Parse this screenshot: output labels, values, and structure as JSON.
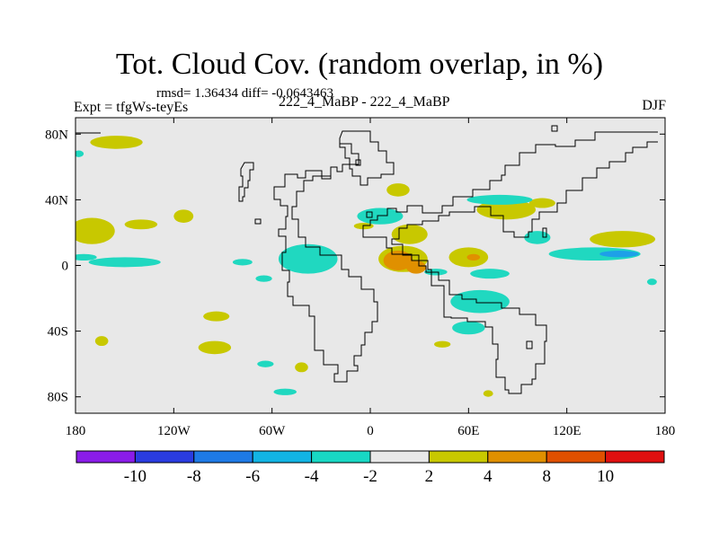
{
  "title": "Tot. Cloud Cov. (random overlap, in %)",
  "stats": "rmsd= 1.36434 diff= -0.0643463",
  "left_label": "Expt = tfgWs-teyEs",
  "center_label": "222_4_MaBP - 222_4_MaBP",
  "right_label": "DJF",
  "colors": {
    "background_field": "#e8e8e8",
    "yellow_green": "#c8c800",
    "orange": "#e09000",
    "cyan": "#20d8c0",
    "blue": "#1ea0e8",
    "coastline": "#000000"
  },
  "map": {
    "lon_range": [
      -180,
      180
    ],
    "lat_range": [
      -90,
      90
    ],
    "x_ticks": [
      {
        "lon": -180,
        "label": "180"
      },
      {
        "lon": -120,
        "label": "120W"
      },
      {
        "lon": -60,
        "label": "60W"
      },
      {
        "lon": 0,
        "label": "0"
      },
      {
        "lon": 60,
        "label": "60E"
      },
      {
        "lon": 120,
        "label": "120E"
      },
      {
        "lon": 180,
        "label": "180"
      }
    ],
    "y_ticks": [
      {
        "lat": 80,
        "label": "80N"
      },
      {
        "lat": 40,
        "label": "40N"
      },
      {
        "lat": 0,
        "label": "0"
      },
      {
        "lat": -40,
        "label": "40S"
      },
      {
        "lat": -80,
        "label": "80S"
      }
    ],
    "anomaly_regions": [
      {
        "level": "positive_2_4",
        "lon": -155,
        "lat": 75,
        "rlon": 16,
        "rlat": 4
      },
      {
        "level": "positive_2_4",
        "lon": -170,
        "lat": 21,
        "rlon": 14,
        "rlat": 8
      },
      {
        "level": "positive_2_4",
        "lon": -140,
        "lat": 25,
        "rlon": 10,
        "rlat": 3
      },
      {
        "level": "positive_2_4",
        "lon": -114,
        "lat": 30,
        "rlon": 6,
        "rlat": 4
      },
      {
        "level": "positive_2_4",
        "lon": -4,
        "lat": 24,
        "rlon": 6,
        "rlat": 2
      },
      {
        "level": "positive_2_4",
        "lon": 17,
        "lat": 46,
        "rlon": 7,
        "rlat": 4
      },
      {
        "level": "positive_2_4",
        "lon": 24,
        "lat": 19,
        "rlon": 11,
        "rlat": 6
      },
      {
        "level": "positive_2_4",
        "lon": 20,
        "lat": 4,
        "rlon": 15,
        "rlat": 8
      },
      {
        "level": "positive_2_4",
        "lon": 60,
        "lat": 5,
        "rlon": 12,
        "rlat": 6
      },
      {
        "level": "positive_2_4",
        "lon": 83,
        "lat": 34,
        "rlon": 18,
        "rlat": 6
      },
      {
        "level": "positive_2_4",
        "lon": 105,
        "lat": 38,
        "rlon": 8,
        "rlat": 3
      },
      {
        "level": "positive_2_4",
        "lon": 154,
        "lat": 16,
        "rlon": 20,
        "rlat": 5
      },
      {
        "level": "positive_2_4",
        "lon": -94,
        "lat": -31,
        "rlon": 8,
        "rlat": 3
      },
      {
        "level": "positive_2_4",
        "lon": -164,
        "lat": -46,
        "rlon": 4,
        "rlat": 3
      },
      {
        "level": "positive_2_4",
        "lon": -95,
        "lat": -50,
        "rlon": 10,
        "rlat": 4
      },
      {
        "level": "positive_2_4",
        "lon": -42,
        "lat": -62,
        "rlon": 4,
        "rlat": 3
      },
      {
        "level": "positive_2_4",
        "lon": 44,
        "lat": -48,
        "rlon": 5,
        "rlat": 2
      },
      {
        "level": "positive_2_4",
        "lon": 72,
        "lat": -78,
        "rlon": 3,
        "rlat": 2
      },
      {
        "level": "positive_4_8",
        "lon": 17,
        "lat": 3,
        "rlon": 9,
        "rlat": 6
      },
      {
        "level": "positive_4_8",
        "lon": 28,
        "lat": -1,
        "rlon": 6,
        "rlat": 4
      },
      {
        "level": "positive_4_8",
        "lon": 63,
        "lat": 5,
        "rlon": 4,
        "rlat": 2
      },
      {
        "level": "negative_2_4",
        "lon": -178,
        "lat": 68,
        "rlon": 3,
        "rlat": 2
      },
      {
        "level": "negative_2_4",
        "lon": -175,
        "lat": 5,
        "rlon": 8,
        "rlat": 2
      },
      {
        "level": "negative_2_4",
        "lon": -150,
        "lat": 2,
        "rlon": 22,
        "rlat": 3
      },
      {
        "level": "negative_2_4",
        "lon": -65,
        "lat": -8,
        "rlon": 5,
        "rlat": 2
      },
      {
        "level": "negative_2_4",
        "lon": -78,
        "lat": 2,
        "rlon": 6,
        "rlat": 2
      },
      {
        "level": "negative_2_4",
        "lon": -38,
        "lat": 4,
        "rlon": 18,
        "rlat": 9
      },
      {
        "level": "negative_2_4",
        "lon": 6,
        "lat": 30,
        "rlon": 14,
        "rlat": 5
      },
      {
        "level": "negative_2_4",
        "lon": 40,
        "lat": -4,
        "rlon": 7,
        "rlat": 2
      },
      {
        "level": "negative_2_4",
        "lon": 73,
        "lat": -5,
        "rlon": 12,
        "rlat": 3
      },
      {
        "level": "negative_2_4",
        "lon": 67,
        "lat": -22,
        "rlon": 18,
        "rlat": 7
      },
      {
        "level": "negative_2_4",
        "lon": 60,
        "lat": -38,
        "rlon": 10,
        "rlat": 4
      },
      {
        "level": "negative_2_4",
        "lon": 79,
        "lat": 40,
        "rlon": 20,
        "rlat": 3
      },
      {
        "level": "negative_2_4",
        "lon": 102,
        "lat": 17,
        "rlon": 8,
        "rlat": 4
      },
      {
        "level": "negative_2_4",
        "lon": 137,
        "lat": 7,
        "rlon": 28,
        "rlat": 4
      },
      {
        "level": "negative_2_4",
        "lon": -52,
        "lat": -77,
        "rlon": 7,
        "rlat": 2
      },
      {
        "level": "negative_2_4",
        "lon": -64,
        "lat": -60,
        "rlon": 5,
        "rlat": 2
      },
      {
        "level": "negative_2_4",
        "lon": 172,
        "lat": -10,
        "rlon": 3,
        "rlat": 2
      },
      {
        "level": "negative_4_6",
        "lon": 152,
        "lat": 7,
        "rlon": 12,
        "rlat": 2
      }
    ]
  },
  "colorbar": {
    "colors": [
      "#8a1ce8",
      "#2a3ce0",
      "#1e7ae6",
      "#12b4e4",
      "#18d8c4",
      "#e8e8e8",
      "#c8c800",
      "#e09000",
      "#e05000",
      "#e01010"
    ],
    "labels": [
      "-10",
      "-8",
      "-6",
      "-4",
      "-2",
      "2",
      "4",
      "8",
      "10"
    ]
  }
}
